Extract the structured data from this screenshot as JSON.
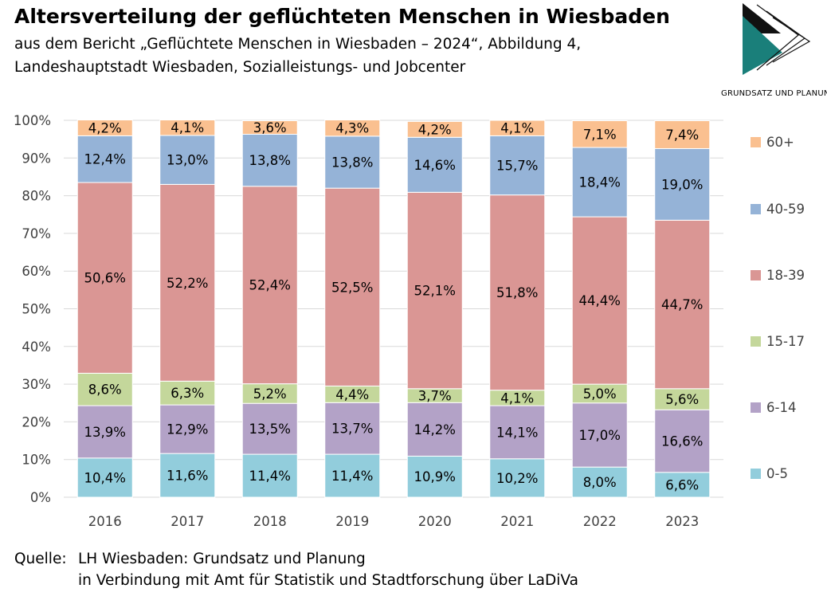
{
  "header": {
    "title": "Altersverteilung der geflüchteten Menschen in Wiesbaden",
    "subtitle": "aus dem Bericht „Geflüchtete Menschen in Wiesbaden – 2024“, Abbildung 4,\nLandeshauptstadt Wiesbaden, Sozialleistungs- und Jobcenter"
  },
  "logo": {
    "text": "GRUNDSATZ UND PLANUNG",
    "colors": {
      "dark": "#111111",
      "teal": "#1a7f7a"
    }
  },
  "source": {
    "label": "Quelle:",
    "line1": "LH Wiesbaden: Grundsatz und Planung",
    "line2": "in Verbindung mit Amt für Statistik und Stadtforschung über LaDiVa"
  },
  "chart_data": {
    "type": "bar",
    "stacked": true,
    "percent_stacked": true,
    "categories": [
      "2016",
      "2017",
      "2018",
      "2019",
      "2020",
      "2021",
      "2022",
      "2023"
    ],
    "series": [
      {
        "name": "0-5",
        "color": "#92cddc",
        "values": [
          10.4,
          11.6,
          11.4,
          11.4,
          10.9,
          10.2,
          8.0,
          6.6
        ],
        "labels": [
          "10,4%",
          "11,6%",
          "11,4%",
          "11,4%",
          "10,9%",
          "10,2%",
          "8,0%",
          "6,6%"
        ]
      },
      {
        "name": "6-14",
        "color": "#b3a2c7",
        "values": [
          13.9,
          12.9,
          13.5,
          13.7,
          14.2,
          14.1,
          17.0,
          16.6
        ],
        "labels": [
          "13,9%",
          "12,9%",
          "13,5%",
          "13,7%",
          "14,2%",
          "14,1%",
          "17,0%",
          "16,6%"
        ]
      },
      {
        "name": "15-17",
        "color": "#c4d79b",
        "values": [
          8.6,
          6.3,
          5.2,
          4.4,
          3.7,
          4.1,
          5.0,
          5.6
        ],
        "labels": [
          "8,6%",
          "6,3%",
          "5,2%",
          "4,4%",
          "3,7%",
          "4,1%",
          "5,0%",
          "5,6%"
        ]
      },
      {
        "name": "18-39",
        "color": "#da9694",
        "values": [
          50.6,
          52.2,
          52.4,
          52.5,
          52.1,
          51.8,
          44.4,
          44.7
        ],
        "labels": [
          "50,6%",
          "52,2%",
          "52,4%",
          "52,5%",
          "52,1%",
          "51,8%",
          "44,4%",
          "44,7%"
        ]
      },
      {
        "name": "40-59",
        "color": "#95b3d7",
        "values": [
          12.4,
          13.0,
          13.8,
          13.8,
          14.6,
          15.7,
          18.4,
          19.0
        ],
        "labels": [
          "12,4%",
          "13,0%",
          "13,8%",
          "13,8%",
          "14,6%",
          "15,7%",
          "18,4%",
          "19,0%"
        ]
      },
      {
        "name": "60+",
        "color": "#fac090",
        "values": [
          4.2,
          4.1,
          3.6,
          4.3,
          4.2,
          4.1,
          7.1,
          7.4
        ],
        "labels": [
          "4,2%",
          "4,1%",
          "3,6%",
          "4,3%",
          "4,2%",
          "4,1%",
          "7,1%",
          "7,4%"
        ]
      }
    ],
    "ylim": [
      0,
      100
    ],
    "yticks": [
      "0%",
      "10%",
      "20%",
      "30%",
      "40%",
      "50%",
      "60%",
      "70%",
      "80%",
      "90%",
      "100%"
    ],
    "grid": true,
    "legend_placement": "right",
    "legend_order": [
      "60+",
      "40-59",
      "18-39",
      "15-17",
      "6-14",
      "0-5"
    ]
  }
}
